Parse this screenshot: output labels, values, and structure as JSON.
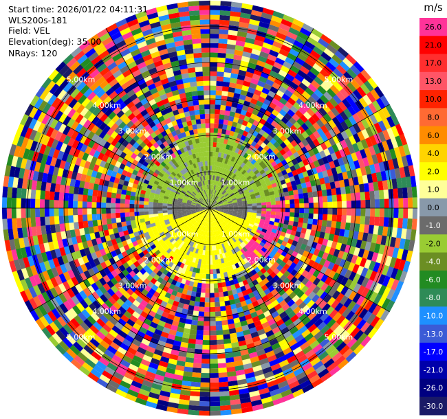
{
  "info": {
    "start_time": "Start time: 2026/01/22 04:11:31",
    "instrument": "WLS200s-181",
    "field": "Field: VEL",
    "elevation": "Elevation(deg): 35.00",
    "nrays": "NRays: 120"
  },
  "chart_data": {
    "type": "heatmap",
    "projection": "polar-ppi",
    "field": "VEL",
    "units": "m/s",
    "range_rings_km": [
      1.0,
      2.0,
      3.0,
      4.0,
      5.0
    ],
    "range_ring_labels": [
      "1.00km",
      "2.00km",
      "3.00km",
      "4.00km",
      "5.00km"
    ],
    "max_range_km": 5.7,
    "n_rays": 120,
    "n_gates": 44,
    "spokes_deg": [
      0,
      30,
      60,
      90,
      120,
      150,
      180,
      210,
      240,
      270,
      300,
      330
    ],
    "colorbar": {
      "unit_label": "m/s",
      "levels": [
        {
          "label": "26.0",
          "value": 26.0,
          "color": "#ff3399"
        },
        {
          "label": "21.0",
          "value": 21.0,
          "color": "#ff0000"
        },
        {
          "label": "17.0",
          "value": 17.0,
          "color": "#ff2e2e"
        },
        {
          "label": "13.0",
          "value": 13.0,
          "color": "#ff5566"
        },
        {
          "label": "10.0",
          "value": 10.0,
          "color": "#ff2200"
        },
        {
          "label": "8.0",
          "value": 8.0,
          "color": "#ff6a33"
        },
        {
          "label": "6.0",
          "value": 6.0,
          "color": "#ff8c00"
        },
        {
          "label": "4.0",
          "value": 4.0,
          "color": "#ffd400"
        },
        {
          "label": "2.0",
          "value": 2.0,
          "color": "#ffff00"
        },
        {
          "label": "1.0",
          "value": 1.0,
          "color": "#ffff99"
        },
        {
          "label": "0.0",
          "value": 0.0,
          "color": "#8899aa"
        },
        {
          "label": "-1.0",
          "value": -1.0,
          "color": "#6b6b6b"
        },
        {
          "label": "-2.0",
          "value": -2.0,
          "color": "#99cc33"
        },
        {
          "label": "-4.0",
          "value": -4.0,
          "color": "#6b8e23"
        },
        {
          "label": "-6.0",
          "value": -6.0,
          "color": "#228b22"
        },
        {
          "label": "-8.0",
          "value": -8.0,
          "color": "#2e8b57"
        },
        {
          "label": "-10.0",
          "value": -10.0,
          "color": "#1e90ff"
        },
        {
          "label": "-13.0",
          "value": -13.0,
          "color": "#3b5bd6"
        },
        {
          "label": "-17.0",
          "value": -17.0,
          "color": "#0000ff"
        },
        {
          "label": "-21.0",
          "value": -21.0,
          "color": "#0000aa"
        },
        {
          "label": "-26.0",
          "value": -26.0,
          "color": "#000080"
        },
        {
          "label": "-30.0",
          "value": -30.0,
          "color": "#1a1a66"
        }
      ]
    },
    "center_pattern": {
      "inner_range_km": 2.1,
      "north_velocity_ms": -2.0,
      "south_velocity_ms": 2.0,
      "east_velocity_ms": 26.0,
      "core_velocity_ms": -1.0
    }
  }
}
